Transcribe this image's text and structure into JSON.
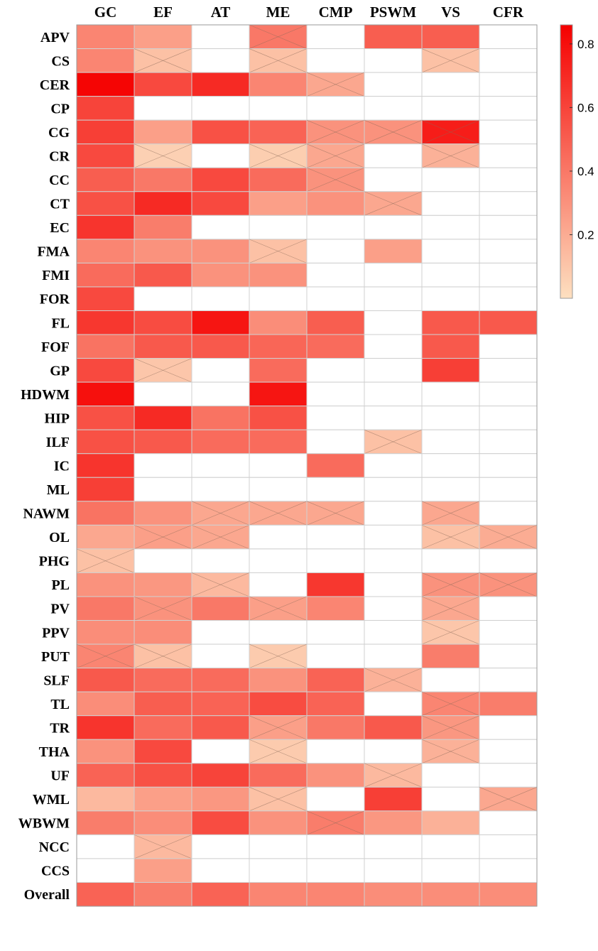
{
  "chart_data": {
    "type": "heatmap",
    "title": "",
    "columns": [
      "GC",
      "EF",
      "AT",
      "ME",
      "CMP",
      "PSWM",
      "VS",
      "CFR"
    ],
    "rows": [
      "APV",
      "CS",
      "CER",
      "CP",
      "CG",
      "CR",
      "CC",
      "CT",
      "EC",
      "FMA",
      "FMI",
      "FOR",
      "FL",
      "FOF",
      "GP",
      "HDWM",
      "HIP",
      "ILF",
      "IC",
      "ML",
      "NAWM",
      "OL",
      "PHG",
      "PL",
      "PV",
      "PPV",
      "PUT",
      "SLF",
      "TL",
      "TR",
      "THA",
      "UF",
      "WML",
      "WBWM",
      "NCC",
      "CCS",
      "Overall"
    ],
    "values": [
      [
        0.35,
        0.25,
        null,
        0.4,
        null,
        0.5,
        0.5,
        null
      ],
      [
        0.35,
        0.12,
        null,
        0.12,
        null,
        null,
        0.12,
        null
      ],
      [
        0.84,
        0.58,
        0.7,
        0.35,
        0.22,
        null,
        null,
        null
      ],
      [
        0.6,
        null,
        null,
        null,
        null,
        null,
        null,
        null
      ],
      [
        0.62,
        0.25,
        0.55,
        0.48,
        0.3,
        0.3,
        0.75,
        null
      ],
      [
        0.58,
        0.06,
        null,
        0.07,
        0.22,
        null,
        0.18,
        null
      ],
      [
        0.5,
        0.4,
        0.58,
        0.45,
        0.3,
        null,
        null,
        null
      ],
      [
        0.55,
        0.7,
        0.58,
        0.25,
        0.3,
        0.22,
        null,
        null
      ],
      [
        0.66,
        0.38,
        null,
        null,
        null,
        null,
        null,
        null
      ],
      [
        0.35,
        0.3,
        0.3,
        0.12,
        null,
        0.25,
        null,
        null
      ],
      [
        0.45,
        0.52,
        0.3,
        0.3,
        null,
        null,
        null,
        null
      ],
      [
        0.58,
        null,
        null,
        null,
        null,
        null,
        null,
        null
      ],
      [
        0.65,
        0.57,
        0.78,
        0.32,
        0.5,
        null,
        0.52,
        0.52
      ],
      [
        0.42,
        0.52,
        0.52,
        0.47,
        0.45,
        null,
        0.52,
        null
      ],
      [
        0.58,
        0.1,
        null,
        0.45,
        null,
        null,
        0.62,
        null
      ],
      [
        0.8,
        null,
        null,
        0.78,
        null,
        null,
        null,
        null
      ],
      [
        0.55,
        0.7,
        0.42,
        0.55,
        null,
        null,
        null,
        null
      ],
      [
        0.55,
        0.52,
        0.45,
        0.45,
        null,
        0.12,
        null,
        null
      ],
      [
        0.66,
        null,
        null,
        null,
        0.45,
        null,
        null,
        null
      ],
      [
        0.62,
        null,
        null,
        null,
        null,
        null,
        null,
        null
      ],
      [
        0.42,
        0.3,
        0.22,
        0.22,
        0.22,
        null,
        0.22,
        null
      ],
      [
        0.22,
        0.25,
        0.22,
        null,
        null,
        null,
        0.12,
        0.2
      ],
      [
        0.12,
        null,
        null,
        null,
        null,
        null,
        null,
        null
      ],
      [
        0.3,
        0.28,
        0.15,
        null,
        0.65,
        null,
        0.3,
        0.3
      ],
      [
        0.4,
        0.3,
        0.4,
        0.25,
        0.35,
        null,
        0.22,
        null
      ],
      [
        0.32,
        0.32,
        null,
        null,
        null,
        null,
        0.1,
        null
      ],
      [
        0.35,
        0.12,
        null,
        0.08,
        null,
        null,
        0.38,
        null
      ],
      [
        0.52,
        0.45,
        0.45,
        0.3,
        0.48,
        0.18,
        null,
        null
      ],
      [
        0.32,
        0.5,
        0.48,
        0.57,
        0.48,
        null,
        0.35,
        0.38
      ],
      [
        0.66,
        0.45,
        0.52,
        0.25,
        0.4,
        0.52,
        0.28,
        null
      ],
      [
        0.3,
        0.58,
        null,
        0.08,
        null,
        null,
        0.18,
        null
      ],
      [
        0.48,
        0.55,
        0.6,
        0.45,
        0.3,
        0.15,
        null,
        null
      ],
      [
        0.15,
        0.25,
        0.28,
        0.12,
        null,
        0.62,
        null,
        0.22
      ],
      [
        0.38,
        0.32,
        0.57,
        0.3,
        0.38,
        0.28,
        0.18,
        null
      ],
      [
        null,
        0.15,
        null,
        null,
        null,
        null,
        null,
        null
      ],
      [
        null,
        0.25,
        null,
        null,
        null,
        null,
        null,
        null
      ],
      [
        0.48,
        0.38,
        0.48,
        0.35,
        0.35,
        0.32,
        0.32,
        0.32
      ]
    ],
    "crossed": [
      [
        0,
        3
      ],
      [
        1,
        1
      ],
      [
        1,
        3
      ],
      [
        1,
        6
      ],
      [
        2,
        4
      ],
      [
        4,
        4
      ],
      [
        4,
        5
      ],
      [
        4,
        6
      ],
      [
        5,
        1
      ],
      [
        5,
        3
      ],
      [
        5,
        4
      ],
      [
        5,
        6
      ],
      [
        6,
        4
      ],
      [
        7,
        5
      ],
      [
        9,
        3
      ],
      [
        14,
        1
      ],
      [
        17,
        5
      ],
      [
        20,
        2
      ],
      [
        20,
        3
      ],
      [
        20,
        4
      ],
      [
        20,
        6
      ],
      [
        21,
        1
      ],
      [
        21,
        2
      ],
      [
        21,
        6
      ],
      [
        21,
        7
      ],
      [
        22,
        0
      ],
      [
        23,
        2
      ],
      [
        23,
        6
      ],
      [
        23,
        7
      ],
      [
        24,
        1
      ],
      [
        24,
        3
      ],
      [
        24,
        6
      ],
      [
        25,
        6
      ],
      [
        26,
        0
      ],
      [
        26,
        1
      ],
      [
        26,
        3
      ],
      [
        27,
        5
      ],
      [
        28,
        6
      ],
      [
        29,
        3
      ],
      [
        29,
        6
      ],
      [
        30,
        3
      ],
      [
        30,
        6
      ],
      [
        31,
        5
      ],
      [
        32,
        3
      ],
      [
        32,
        7
      ],
      [
        33,
        4
      ],
      [
        34,
        1
      ]
    ],
    "color_scale": {
      "min": 0.0,
      "max": 0.86,
      "low_color": "#fde0c0",
      "high_color": "#f50000",
      "ticks": [
        "0.2",
        "0.4",
        "0.6",
        "0.8"
      ],
      "tick_values": [
        0.2,
        0.4,
        0.6,
        0.8
      ]
    },
    "missing_color": "#ffffff",
    "grid": true,
    "legend_placement": "right"
  }
}
